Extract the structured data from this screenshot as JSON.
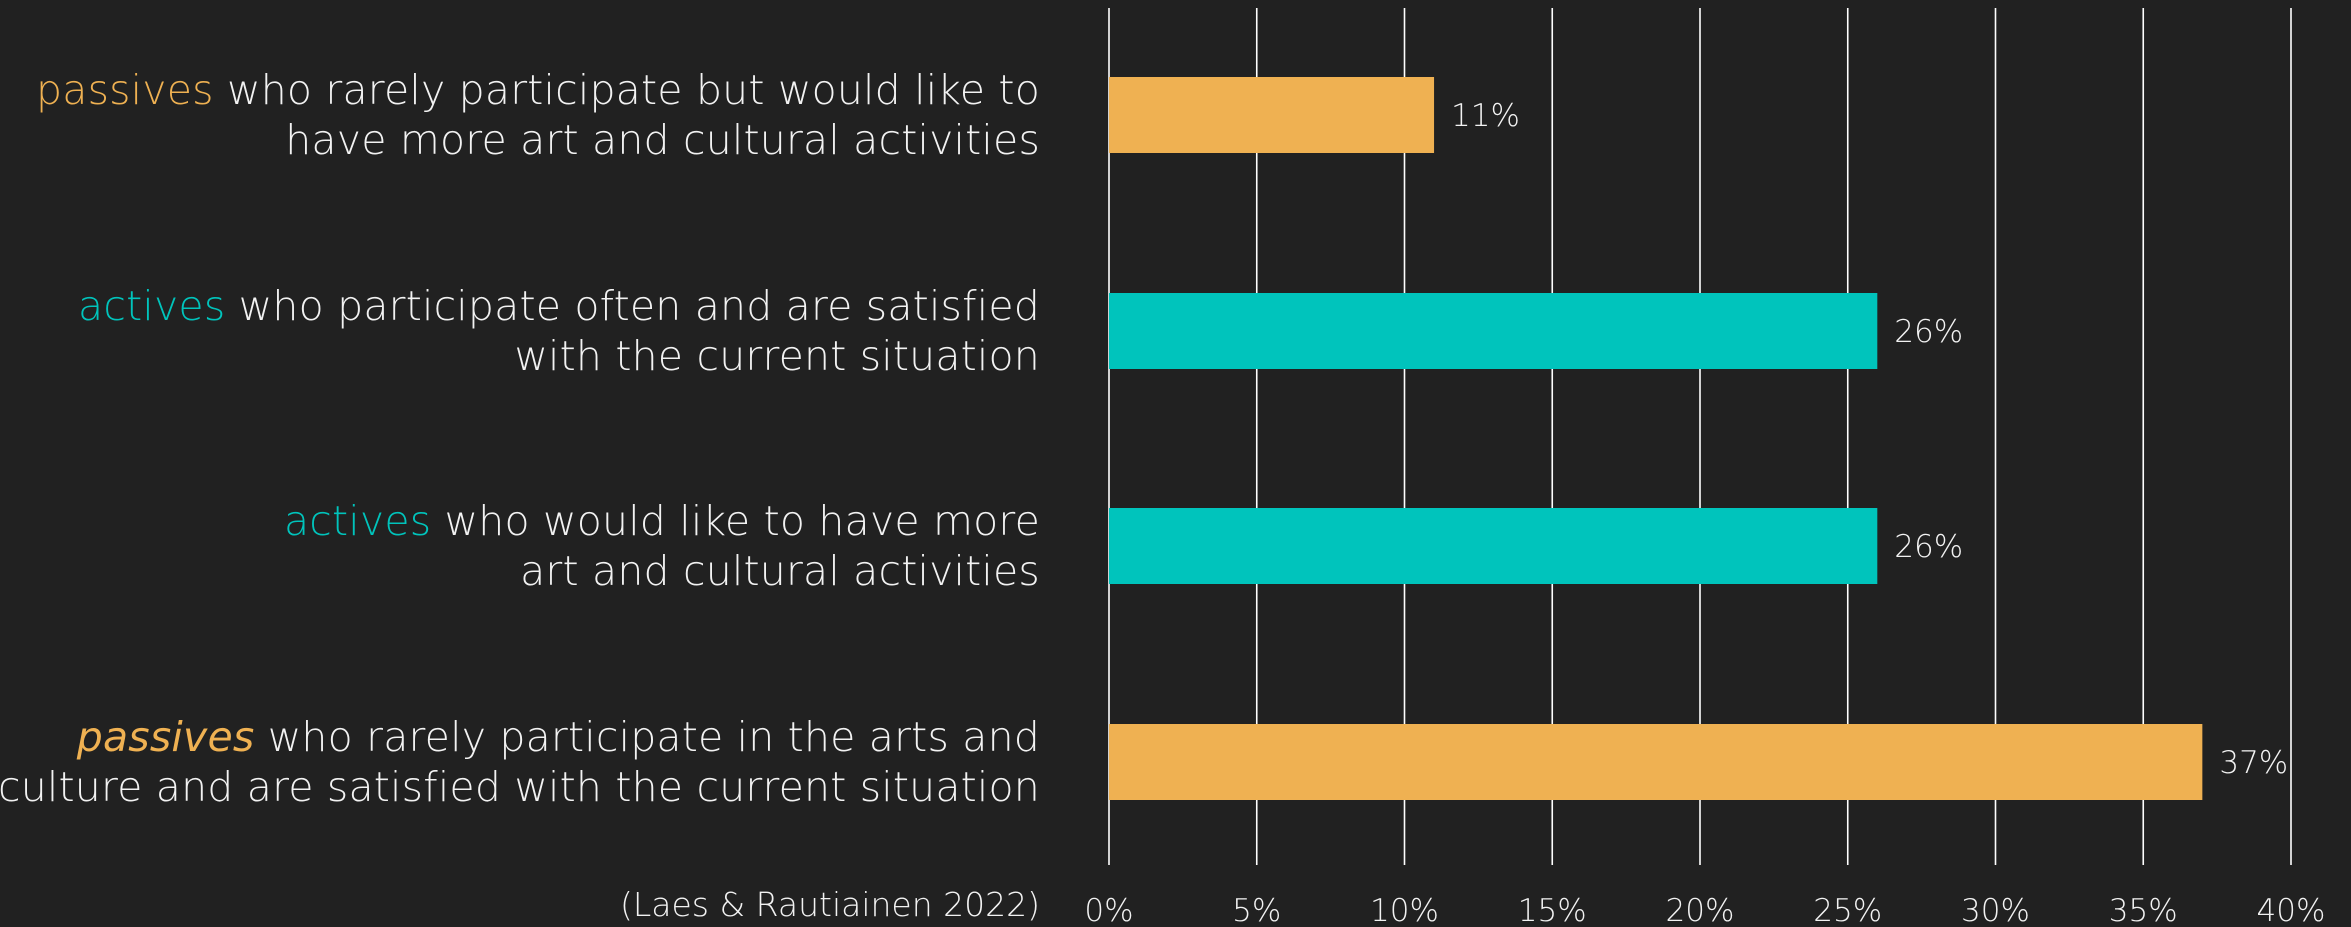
{
  "colors": {
    "background": "#212121",
    "gridline": "#ffffff",
    "text": "#f2f2f2",
    "passive": "#efb152",
    "active": "#00c4bc"
  },
  "source_note": "(Laes & Rautiainen 2022)",
  "chart_data": {
    "type": "bar",
    "orientation": "horizontal",
    "title": "",
    "xlabel": "",
    "ylabel": "",
    "xlim": [
      0,
      40
    ],
    "x_ticks": [
      0,
      5,
      10,
      15,
      20,
      25,
      30,
      35,
      40
    ],
    "x_tick_labels": [
      "0%",
      "5%",
      "10%",
      "15%",
      "20%",
      "25%",
      "30%",
      "35%",
      "40%"
    ],
    "grid": "vertical",
    "legend": "none",
    "categories": [
      {
        "keyword": "passives",
        "keyword_italic": false,
        "group": "passive",
        "lines": [
          "who rarely participate  but would like to",
          "have more art and cultural activities"
        ],
        "value": 11,
        "value_label": "11%"
      },
      {
        "keyword": "actives",
        "keyword_italic": false,
        "group": "active",
        "lines": [
          "who participate  often and are satisfied",
          "with the current situation"
        ],
        "value": 26,
        "value_label": "26%"
      },
      {
        "keyword": "actives",
        "keyword_italic": false,
        "group": "active",
        "lines": [
          "who would like to have more",
          "art and cultural activities"
        ],
        "value": 26,
        "value_label": "26%"
      },
      {
        "keyword": "passives",
        "keyword_italic": true,
        "group": "passive",
        "lines": [
          "who rarely participate  in the arts and",
          "culture and are satisfied  with the current situation"
        ],
        "value": 37,
        "value_label": "37%"
      }
    ]
  }
}
